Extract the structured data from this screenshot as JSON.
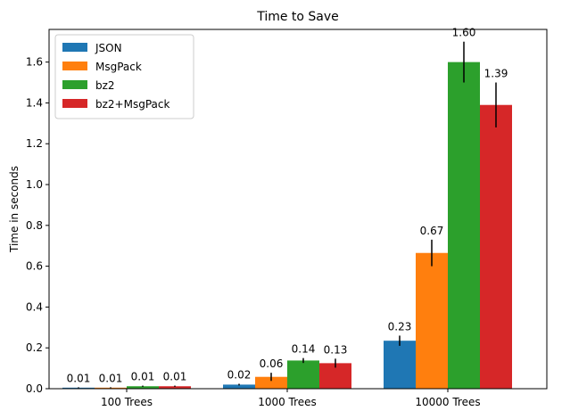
{
  "chart_data": {
    "type": "bar",
    "title": "Time to Save",
    "xlabel": "",
    "ylabel": "Time in seconds",
    "categories": [
      "100 Trees",
      "1000 Trees",
      "10000 Trees"
    ],
    "ylim": [
      0,
      1.76
    ],
    "yticks": [
      "0.0",
      "0.2",
      "0.4",
      "0.6",
      "0.8",
      "1.0",
      "1.2",
      "1.4",
      "1.6"
    ],
    "grid": false,
    "legend_position": "top-left",
    "series": [
      {
        "name": "JSON",
        "color": "#1f77b4",
        "values": [
          0.005,
          0.02,
          0.235
        ],
        "errors": [
          0.002,
          0.004,
          0.025
        ],
        "labels": [
          "0.01",
          "0.02",
          "0.23"
        ]
      },
      {
        "name": "MsgPack",
        "color": "#ff7f0e",
        "values": [
          0.005,
          0.058,
          0.665
        ],
        "errors": [
          0.002,
          0.02,
          0.065
        ],
        "labels": [
          "0.01",
          "0.06",
          "0.67"
        ]
      },
      {
        "name": "bz2",
        "color": "#2ca02c",
        "values": [
          0.012,
          0.138,
          1.6
        ],
        "errors": [
          0.003,
          0.012,
          0.1
        ],
        "labels": [
          "0.01",
          "0.14",
          "1.60"
        ]
      },
      {
        "name": "bz2+MsgPack",
        "color": "#d62728",
        "values": [
          0.012,
          0.125,
          1.39
        ],
        "errors": [
          0.003,
          0.022,
          0.11
        ],
        "labels": [
          "0.01",
          "0.13",
          "1.39"
        ]
      }
    ]
  }
}
